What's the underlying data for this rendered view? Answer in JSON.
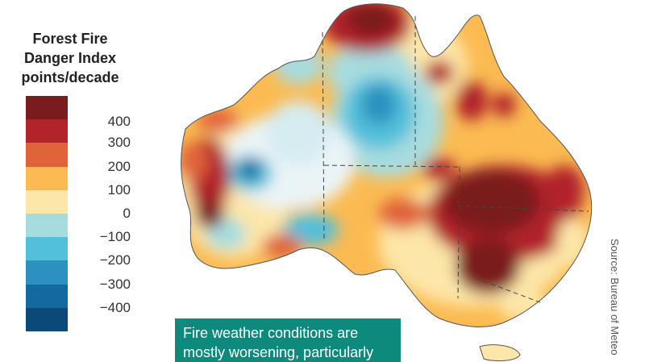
{
  "legend": {
    "title_lines": [
      "Forest Fire",
      "Danger Index",
      "points/decade"
    ],
    "ticks": [
      "400",
      "300",
      "200",
      "100",
      "0",
      "−100",
      "−200",
      "−300",
      "−400"
    ],
    "colors": [
      "#7a1c1e",
      "#b1242a",
      "#e0633a",
      "#fbbb52",
      "#fde6a9",
      "#a7dcdf",
      "#52c0da",
      "#2c91bf",
      "#126aa0",
      "#0a4978"
    ]
  },
  "callout": {
    "lines": [
      "Fire weather conditions are",
      "mostly worsening, particularly"
    ]
  },
  "source": "Source: Bureau of Meteo"
}
